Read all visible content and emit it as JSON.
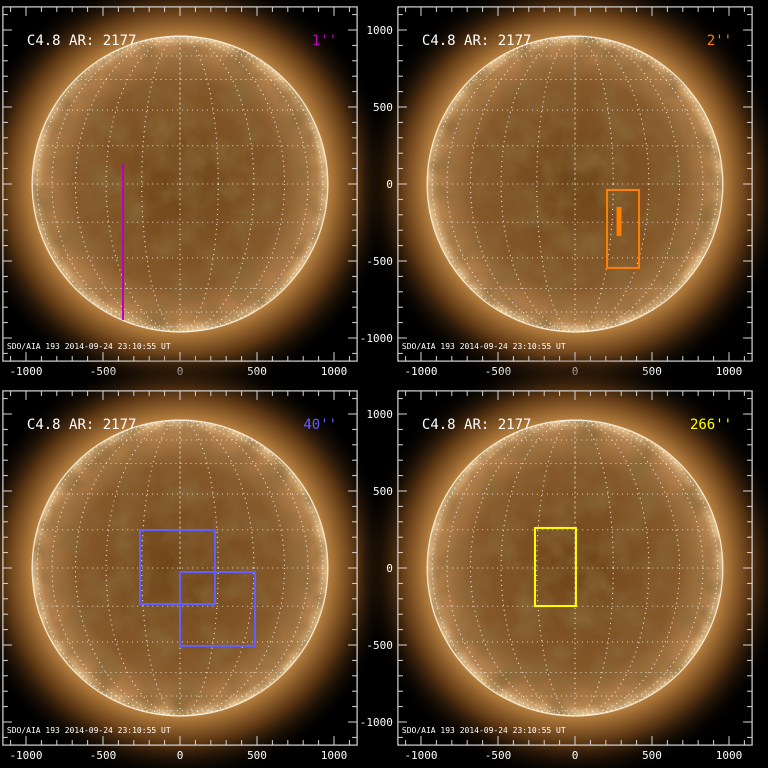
{
  "figure": {
    "instrument_label": "SDO/AIA 193   2014-09-24 23:10:55 UT",
    "x_ticks": [
      -1000,
      -500,
      0,
      500,
      1000
    ],
    "y_ticks": [
      1000,
      500,
      0,
      -500,
      -1000
    ],
    "axis_range_arcsec": [
      -1150,
      1150
    ],
    "solar_radius_arcsec": 960,
    "colors": {
      "frame": "#d8d8d8",
      "disk_center": "#7a4f22",
      "limb": "#f4dcb0",
      "corona": "#b07a3c"
    }
  },
  "panels": [
    {
      "title": "C4.8 AR: 2177",
      "label": "1''",
      "color": "#c000c0",
      "overlays": [
        {
          "type": "line",
          "x": -370,
          "y1": 136,
          "y2": -883
        }
      ]
    },
    {
      "title": "C4.8 AR: 2177",
      "label": "2''",
      "color": "#ff7f00",
      "overlays": [
        {
          "type": "box",
          "x1": 208,
          "x2": 416,
          "y1": -39,
          "y2": -545
        },
        {
          "type": "bar",
          "x": 286,
          "y1": -149,
          "y2": -338
        }
      ]
    },
    {
      "title": "C4.8 AR: 2177",
      "label": "40''",
      "color": "#6060ff",
      "overlays": [
        {
          "type": "box",
          "x1": -260,
          "x2": 227,
          "y1": 247,
          "y2": -234
        },
        {
          "type": "box",
          "x1": 0,
          "x2": 487,
          "y1": -26,
          "y2": -506
        }
      ]
    },
    {
      "title": "C4.8 AR: 2177",
      "label": "266''",
      "color": "#ffff00",
      "overlays": [
        {
          "type": "box",
          "x1": -260,
          "x2": 6,
          "y1": 260,
          "y2": -247
        }
      ]
    }
  ]
}
